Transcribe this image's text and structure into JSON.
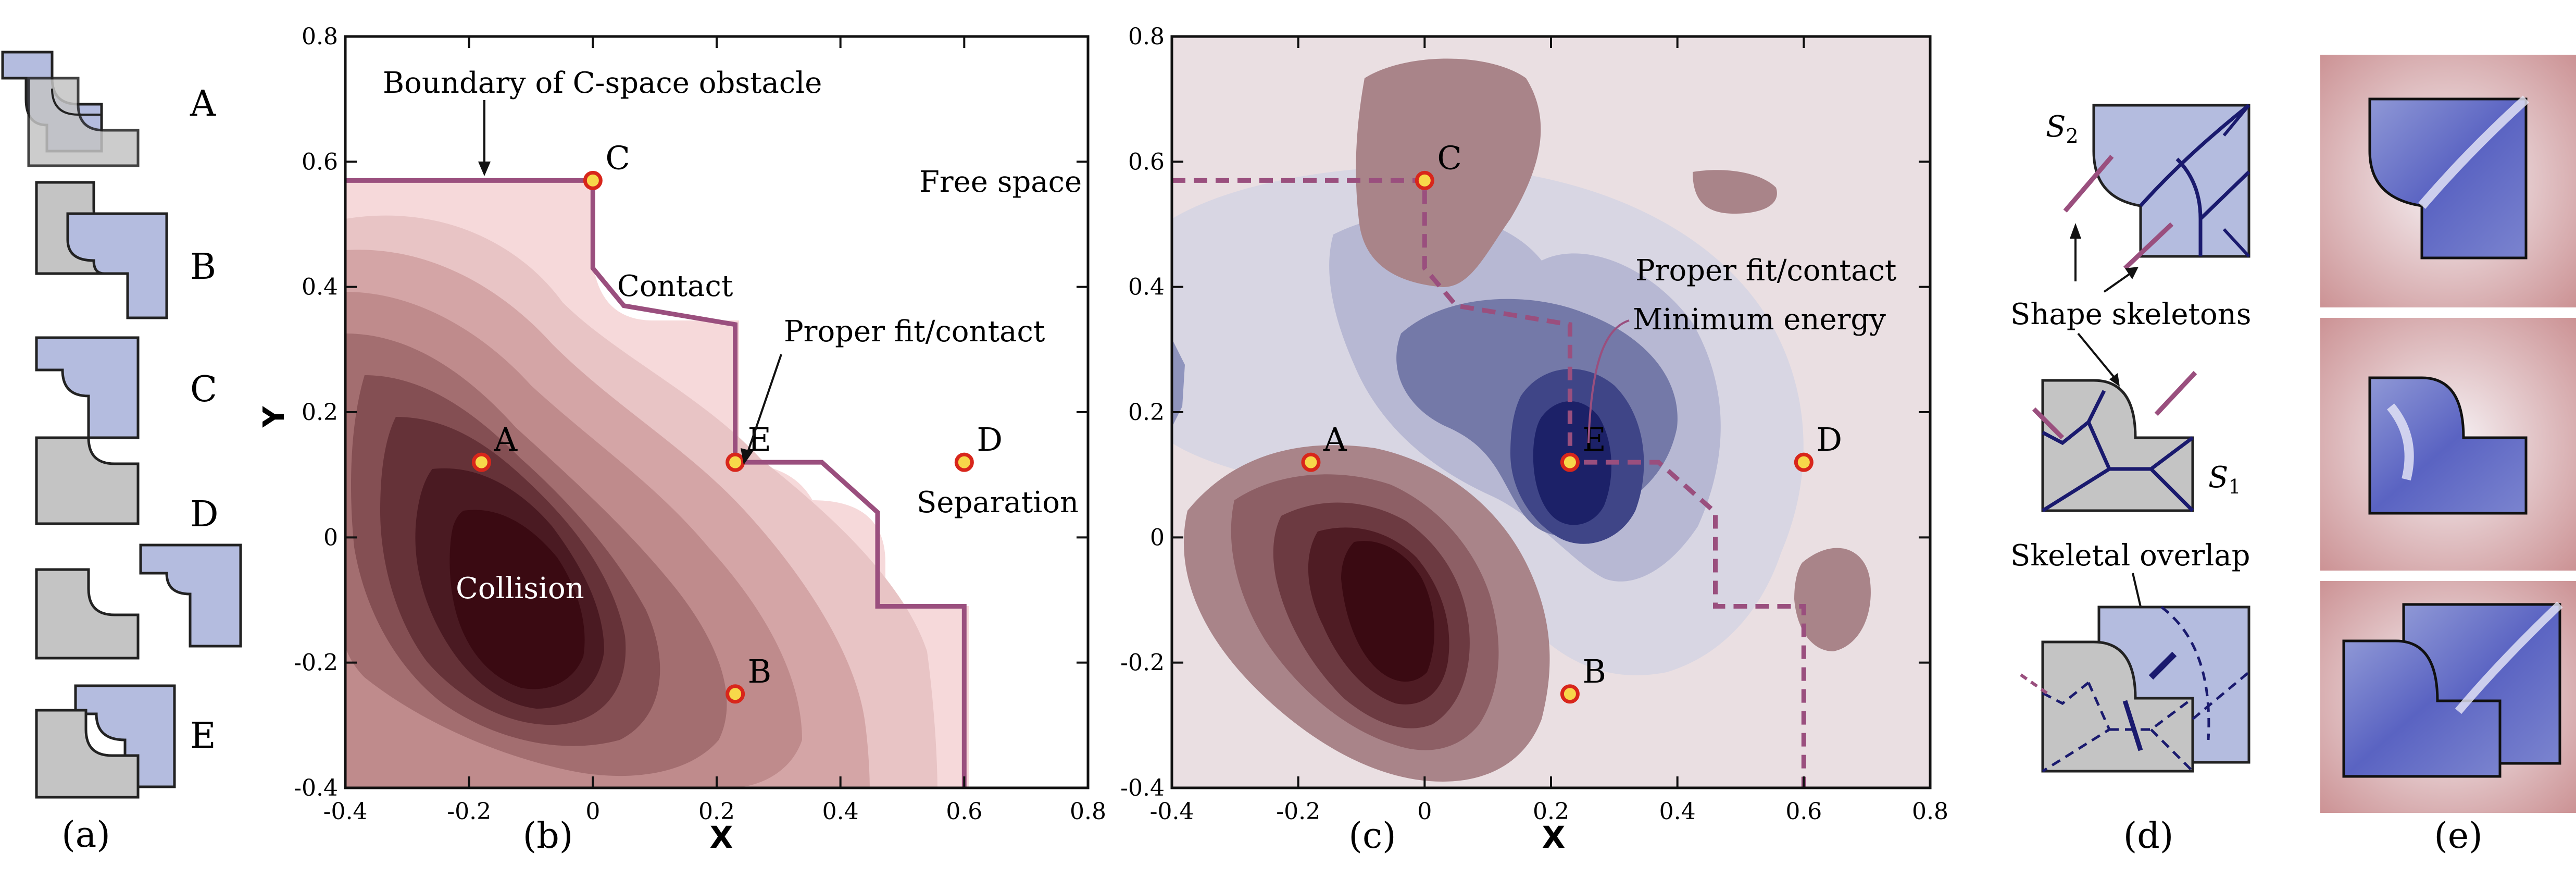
{
  "figure": {
    "panel_labels": [
      "(a)",
      "(b)",
      "(c)",
      "(d)",
      "(e)"
    ]
  },
  "panel_a": {
    "configs": [
      "A",
      "B",
      "C",
      "D",
      "E"
    ]
  },
  "colors": {
    "shape_gray": "#c4c4c4",
    "shape_blue": "#b4bcdf",
    "boundary_purple": "#9a4f7e",
    "point_fill": "#f7d84a",
    "point_ring": "#d8261b",
    "skeleton_navy": "#1a1a6e"
  },
  "chart_data": [
    {
      "type": "contour",
      "panel": "b",
      "xlabel": "X",
      "ylabel": "Y",
      "xlim": [
        -0.4,
        0.8
      ],
      "ylim": [
        -0.4,
        0.8
      ],
      "xticks": [
        -0.4,
        -0.2,
        0,
        0.2,
        0.4,
        0.6,
        0.8
      ],
      "yticks": [
        -0.4,
        -0.2,
        0,
        0.2,
        0.4,
        0.6,
        0.8
      ],
      "xtick_labels": [
        "-0.4",
        "-0.2",
        "0",
        "0.2",
        "0.4",
        "0.6",
        "0.8"
      ],
      "ytick_labels": [
        "-0.4",
        "-0.2",
        "0",
        "0.2",
        "0.4",
        "0.6",
        "0.8"
      ],
      "points": [
        {
          "label": "A",
          "x": -0.18,
          "y": 0.12
        },
        {
          "label": "B",
          "x": 0.23,
          "y": -0.25
        },
        {
          "label": "C",
          "x": 0.0,
          "y": 0.57
        },
        {
          "label": "D",
          "x": 0.6,
          "y": 0.12
        },
        {
          "label": "E",
          "x": 0.23,
          "y": 0.12
        }
      ],
      "boundary": [
        [
          -0.4,
          0.57
        ],
        [
          0.0,
          0.57
        ],
        [
          0.0,
          0.43
        ],
        [
          0.05,
          0.37
        ],
        [
          0.23,
          0.34
        ],
        [
          0.23,
          0.12
        ],
        [
          0.37,
          0.12
        ],
        [
          0.46,
          0.04
        ],
        [
          0.46,
          -0.11
        ],
        [
          0.6,
          -0.11
        ],
        [
          0.6,
          -0.4
        ]
      ],
      "annotations": {
        "boundary": "Boundary of C-space obstacle",
        "free": "Free space",
        "contact": "Contact",
        "proper_fit": "Proper fit/contact",
        "separation": "Separation",
        "collision": "Collision"
      }
    },
    {
      "type": "contour",
      "panel": "c",
      "xlabel": "X",
      "ylabel": "Y",
      "xlim": [
        -0.4,
        0.8
      ],
      "ylim": [
        -0.4,
        0.8
      ],
      "xticks": [
        -0.4,
        -0.2,
        0,
        0.2,
        0.4,
        0.6,
        0.8
      ],
      "yticks": [
        -0.4,
        -0.2,
        0,
        0.2,
        0.4,
        0.6,
        0.8
      ],
      "xtick_labels": [
        "-0.4",
        "-0.2",
        "0",
        "0.2",
        "0.4",
        "0.6",
        "0.8"
      ],
      "ytick_labels": [
        "-0.4",
        "-0.2",
        "0",
        "0.2",
        "0.4",
        "0.6",
        "0.8"
      ],
      "points": [
        {
          "label": "A",
          "x": -0.18,
          "y": 0.12
        },
        {
          "label": "B",
          "x": 0.23,
          "y": -0.25
        },
        {
          "label": "C",
          "x": 0.0,
          "y": 0.57
        },
        {
          "label": "D",
          "x": 0.6,
          "y": 0.12
        },
        {
          "label": "E",
          "x": 0.23,
          "y": 0.12
        }
      ],
      "boundary": [
        [
          -0.4,
          0.57
        ],
        [
          0.0,
          0.57
        ],
        [
          0.0,
          0.43
        ],
        [
          0.05,
          0.37
        ],
        [
          0.23,
          0.34
        ],
        [
          0.23,
          0.12
        ],
        [
          0.37,
          0.12
        ],
        [
          0.46,
          0.04
        ],
        [
          0.46,
          -0.11
        ],
        [
          0.6,
          -0.11
        ],
        [
          0.6,
          -0.4
        ]
      ],
      "annotations": {
        "proper_fit": "Proper fit/contact",
        "minimum": "Minimum energy"
      }
    }
  ],
  "panel_d": {
    "s2": "S",
    "s2_sub": "2",
    "s1": "S",
    "s1_sub": "1",
    "skeletons": "Shape skeletons",
    "overlap": "Skeletal overlap"
  }
}
